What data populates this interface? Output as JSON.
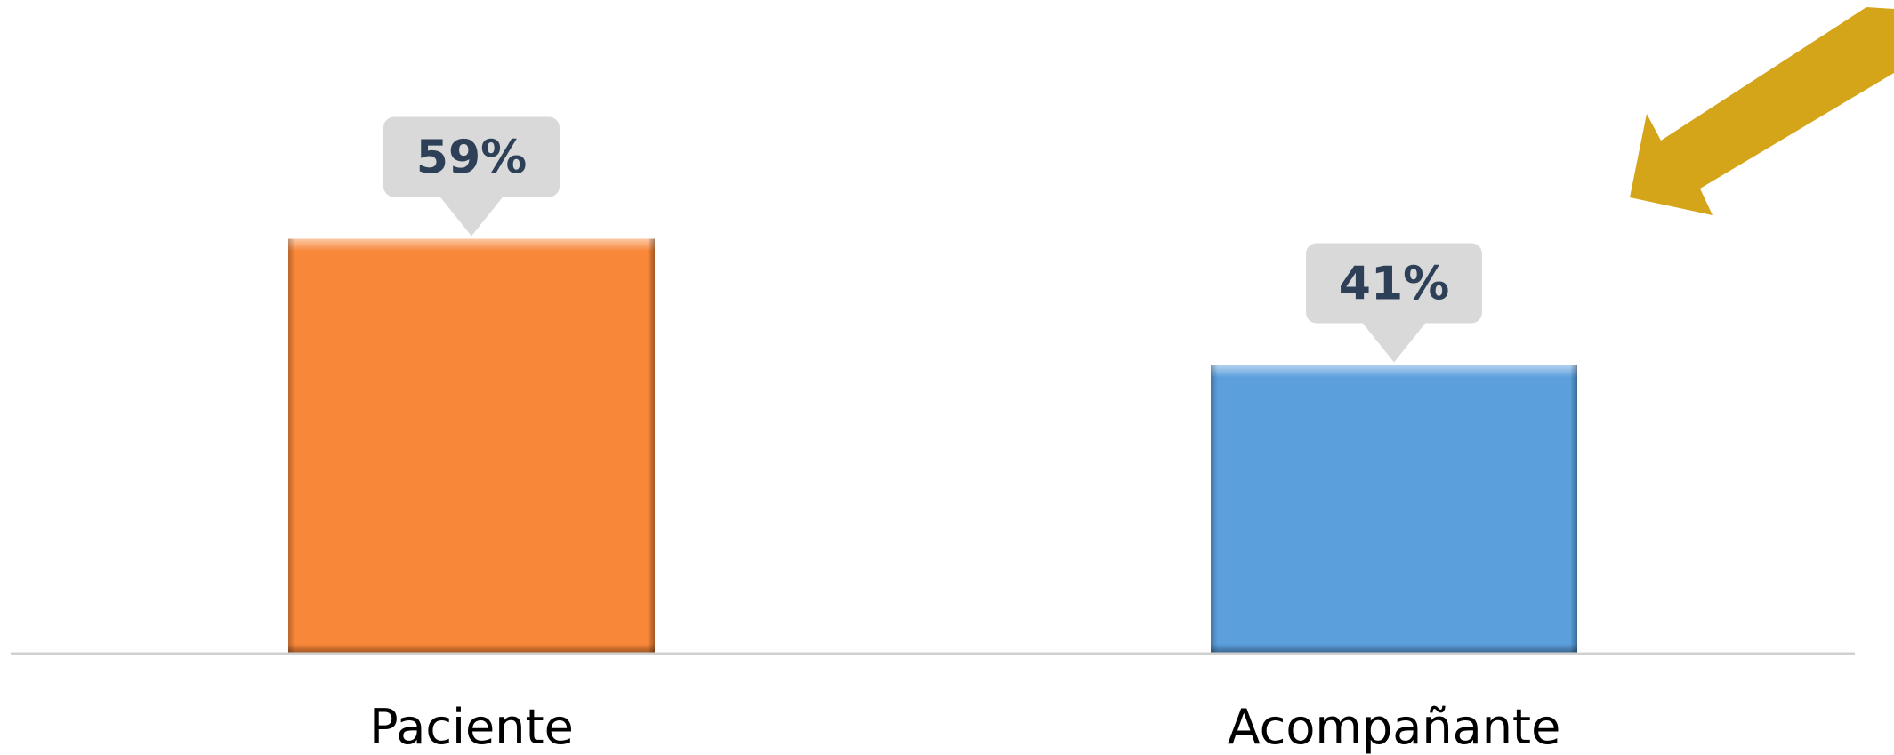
{
  "chart_data": {
    "type": "bar",
    "categories": [
      "Paciente",
      "Acompañante"
    ],
    "values": [
      59,
      41
    ],
    "value_labels": [
      "59%",
      "41%"
    ],
    "colors": [
      "#F98739",
      "#5B9FDD"
    ],
    "label_box_color": "#D9D9D9",
    "label_text_color": "#2E4057",
    "axis_color": "#D0D0D0",
    "ylim": [
      0,
      100
    ],
    "grid": false,
    "legend": "none",
    "title": "",
    "xlabel": "",
    "ylabel": "",
    "annotation": {
      "type": "arrow",
      "color": "#D4A419",
      "placement": "top-right",
      "direction": "down-left"
    }
  }
}
